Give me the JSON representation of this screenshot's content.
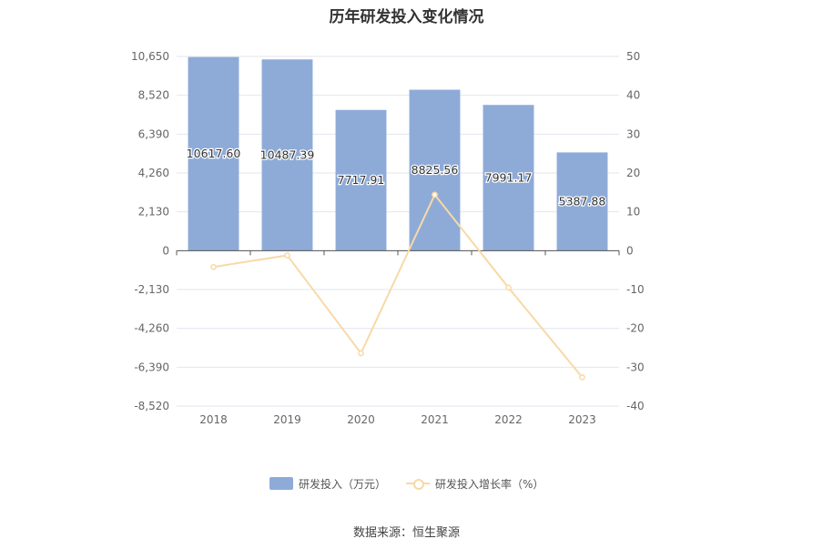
{
  "chart_data": {
    "type": "bar",
    "title": "历年研发投入变化情况",
    "categories": [
      "2018",
      "2019",
      "2020",
      "2021",
      "2022",
      "2023"
    ],
    "series": [
      {
        "name": "研发投入（万元）",
        "type": "bar",
        "axis": "left",
        "values": [
          10617.6,
          10487.39,
          7717.91,
          8825.56,
          7991.17,
          5387.88
        ],
        "labels": [
          "10617.60",
          "10487.39",
          "7717.91",
          "8825.56",
          "7991.17",
          "5387.88"
        ],
        "color": "#8eabd8"
      },
      {
        "name": "研发投入增长率（%）",
        "type": "line",
        "axis": "right",
        "values": [
          -4.2,
          -1.2,
          -26.4,
          14.4,
          -9.5,
          -32.6
        ],
        "color": "#f8d9a6"
      }
    ],
    "y_left": {
      "ylim": [
        -8520,
        10650
      ],
      "ticks": [
        10650,
        8520,
        6390,
        4260,
        2130,
        0,
        -2130,
        -4260,
        -6390,
        -8520
      ],
      "tick_labels": [
        "10,650",
        "8,520",
        "6,390",
        "4,260",
        "2,130",
        "0",
        "-2,130",
        "-4,260",
        "-6,390",
        "-8,520"
      ]
    },
    "y_right": {
      "ylim": [
        -40,
        50
      ],
      "ticks": [
        50,
        40,
        30,
        20,
        10,
        0,
        -10,
        -20,
        -30,
        -40
      ],
      "tick_labels": [
        "50",
        "40",
        "30",
        "20",
        "10",
        "0",
        "-10",
        "-20",
        "-30",
        "-40"
      ]
    },
    "grid": true,
    "legend_position": "bottom-center"
  },
  "source": "数据来源：恒生聚源"
}
